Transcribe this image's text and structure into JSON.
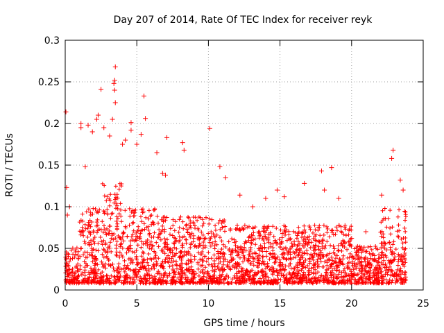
{
  "chart_data": {
    "type": "scatter",
    "title": "Day 207 of 2014, Rate Of TEC Index for receiver reyk",
    "xlabel": "GPS time / hours",
    "ylabel": "ROTI / TECUs",
    "xlim": [
      0,
      25
    ],
    "ylim": [
      0,
      0.3
    ],
    "xticks": [
      "0",
      "5",
      "10",
      "15",
      "20",
      "25"
    ],
    "xtick_values": [
      0,
      5,
      10,
      15,
      20,
      25
    ],
    "yticks": [
      "0",
      "0.05",
      "0.1",
      "0.15",
      "0.2",
      "0.25",
      "0.3"
    ],
    "ytick_values": [
      0,
      0.05,
      0.1,
      0.15,
      0.2,
      0.25,
      0.3
    ],
    "grid": true,
    "marker": "+",
    "color": "#ff0000",
    "series": [
      {
        "name": "ROTI",
        "points": [
          [
            0.05,
            0.214
          ],
          [
            0.1,
            0.123
          ],
          [
            0.15,
            0.09
          ],
          [
            0.3,
            0.1
          ],
          [
            1.1,
            0.2
          ],
          [
            1.1,
            0.195
          ],
          [
            1.4,
            0.148
          ],
          [
            1.6,
            0.198
          ],
          [
            1.9,
            0.19
          ],
          [
            2.2,
            0.205
          ],
          [
            2.3,
            0.21
          ],
          [
            2.5,
            0.241
          ],
          [
            2.7,
            0.195
          ],
          [
            3.1,
            0.185
          ],
          [
            3.4,
            0.248
          ],
          [
            3.45,
            0.252
          ],
          [
            3.5,
            0.268
          ],
          [
            3.45,
            0.24
          ],
          [
            3.3,
            0.205
          ],
          [
            3.5,
            0.225
          ],
          [
            4.0,
            0.175
          ],
          [
            4.2,
            0.18
          ],
          [
            4.6,
            0.201
          ],
          [
            4.6,
            0.192
          ],
          [
            5.0,
            0.175
          ],
          [
            5.3,
            0.187
          ],
          [
            5.5,
            0.233
          ],
          [
            5.6,
            0.206
          ],
          [
            6.4,
            0.165
          ],
          [
            6.8,
            0.14
          ],
          [
            7.0,
            0.138
          ],
          [
            7.1,
            0.183
          ],
          [
            8.2,
            0.177
          ],
          [
            8.3,
            0.168
          ],
          [
            10.1,
            0.194
          ],
          [
            10.8,
            0.148
          ],
          [
            11.2,
            0.135
          ],
          [
            12.2,
            0.114
          ],
          [
            13.1,
            0.1
          ],
          [
            14.0,
            0.11
          ],
          [
            14.8,
            0.12
          ],
          [
            15.3,
            0.112
          ],
          [
            16.7,
            0.128
          ],
          [
            17.9,
            0.143
          ],
          [
            18.1,
            0.12
          ],
          [
            18.6,
            0.147
          ],
          [
            19.1,
            0.11
          ],
          [
            20.0,
            0.062
          ],
          [
            21.0,
            0.07
          ],
          [
            22.1,
            0.114
          ],
          [
            22.8,
            0.158
          ],
          [
            22.9,
            0.168
          ],
          [
            23.4,
            0.132
          ],
          [
            23.6,
            0.12
          ]
        ]
      }
    ]
  }
}
